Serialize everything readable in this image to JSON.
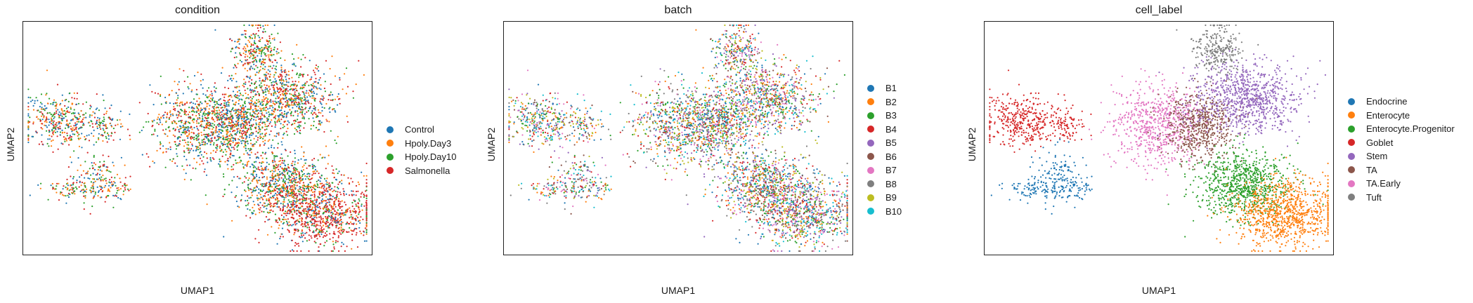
{
  "chart_data": [
    {
      "type": "scatter",
      "title": "condition",
      "xlabel": "UMAP1",
      "ylabel": "UMAP2",
      "legend_position": "right",
      "color_by": "condition",
      "series": [
        {
          "name": "Control",
          "color": "#1f77b4"
        },
        {
          "name": "Hpoly.Day3",
          "color": "#ff7f0e"
        },
        {
          "name": "Hpoly.Day10",
          "color": "#2ca02c"
        },
        {
          "name": "Salmonella",
          "color": "#d62728"
        }
      ]
    },
    {
      "type": "scatter",
      "title": "batch",
      "xlabel": "UMAP1",
      "ylabel": "UMAP2",
      "legend_position": "right",
      "color_by": "batch",
      "series": [
        {
          "name": "B1",
          "color": "#1f77b4"
        },
        {
          "name": "B2",
          "color": "#ff7f0e"
        },
        {
          "name": "B3",
          "color": "#2ca02c"
        },
        {
          "name": "B4",
          "color": "#d62728"
        },
        {
          "name": "B5",
          "color": "#9467bd"
        },
        {
          "name": "B6",
          "color": "#8c564b"
        },
        {
          "name": "B7",
          "color": "#e377c2"
        },
        {
          "name": "B8",
          "color": "#7f7f7f"
        },
        {
          "name": "B9",
          "color": "#bcbd22"
        },
        {
          "name": "B10",
          "color": "#17becf"
        }
      ]
    },
    {
      "type": "scatter",
      "title": "cell_label",
      "xlabel": "UMAP1",
      "ylabel": "UMAP2",
      "legend_position": "right",
      "color_by": "cell_label",
      "series": [
        {
          "name": "Endocrine",
          "color": "#1f77b4"
        },
        {
          "name": "Enterocyte",
          "color": "#ff7f0e"
        },
        {
          "name": "Enterocyte.Progenitor",
          "color": "#2ca02c"
        },
        {
          "name": "Goblet",
          "color": "#d62728"
        },
        {
          "name": "Stem",
          "color": "#9467bd"
        },
        {
          "name": "TA",
          "color": "#8c564b"
        },
        {
          "name": "TA.Early",
          "color": "#e377c2"
        },
        {
          "name": "Tuft",
          "color": "#7f7f7f"
        }
      ]
    }
  ]
}
